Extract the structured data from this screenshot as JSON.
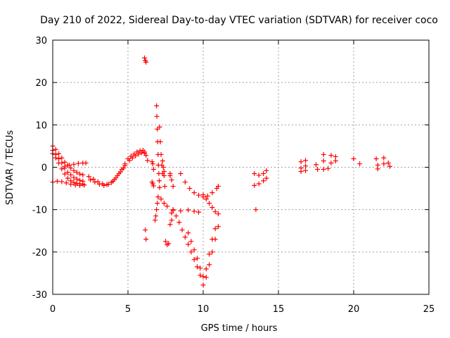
{
  "chart_data": {
    "type": "scatter",
    "title": "Day 210 of 2022, Sidereal Day-to-day VTEC variation (SDTVAR) for receiver coco",
    "xlabel": "GPS time / hours",
    "ylabel": "SDTVAR / TECUs",
    "xlim": [
      0,
      25
    ],
    "ylim": [
      -30,
      30
    ],
    "xticks": [
      "0",
      "5",
      "10",
      "15",
      "20",
      "25"
    ],
    "yticks": [
      "-30",
      "-20",
      "-10",
      "0",
      "10",
      "20",
      "30"
    ],
    "grid": true,
    "marker": "+",
    "color": "#ff0000",
    "series": [
      {
        "name": "SDTVAR",
        "points": [
          [
            0.0,
            5.0
          ],
          [
            0.2,
            4.2
          ],
          [
            0.4,
            3.2
          ],
          [
            0.6,
            2.2
          ],
          [
            0.8,
            1.2
          ],
          [
            1.0,
            0.5
          ],
          [
            1.2,
            -0.2
          ],
          [
            1.4,
            -0.8
          ],
          [
            1.6,
            -1.2
          ],
          [
            1.8,
            -1.6
          ],
          [
            2.0,
            -1.8
          ],
          [
            0.0,
            4.0
          ],
          [
            0.2,
            3.0
          ],
          [
            0.4,
            2.0
          ],
          [
            0.6,
            1.0
          ],
          [
            0.8,
            -0.2
          ],
          [
            1.0,
            -1.2
          ],
          [
            1.2,
            -1.8
          ],
          [
            1.4,
            -2.4
          ],
          [
            1.6,
            -2.8
          ],
          [
            1.8,
            -3.1
          ],
          [
            2.0,
            -3.3
          ],
          [
            0.0,
            3.2
          ],
          [
            0.2,
            2.2
          ],
          [
            0.4,
            1.0
          ],
          [
            0.6,
            -0.4
          ],
          [
            0.8,
            -1.6
          ],
          [
            1.0,
            -2.6
          ],
          [
            1.2,
            -3.2
          ],
          [
            1.4,
            -3.6
          ],
          [
            1.6,
            -3.8
          ],
          [
            1.8,
            -3.9
          ],
          [
            2.0,
            -4.0
          ],
          [
            0.0,
            -3.5
          ],
          [
            0.3,
            -3.3
          ],
          [
            0.6,
            -3.4
          ],
          [
            0.9,
            -3.7
          ],
          [
            1.2,
            -4.0
          ],
          [
            1.5,
            -4.2
          ],
          [
            1.8,
            -4.3
          ],
          [
            2.1,
            -4.2
          ],
          [
            0.8,
            0.2
          ],
          [
            1.1,
            0.5
          ],
          [
            1.4,
            0.7
          ],
          [
            1.7,
            0.9
          ],
          [
            2.0,
            1.0
          ],
          [
            2.2,
            1.0
          ],
          [
            2.4,
            -2.2
          ],
          [
            2.7,
            -2.8
          ],
          [
            3.0,
            -3.4
          ],
          [
            3.3,
            -3.9
          ],
          [
            3.6,
            -4.1
          ],
          [
            3.9,
            -3.6
          ],
          [
            4.1,
            -2.9
          ],
          [
            4.3,
            -2.0
          ],
          [
            4.5,
            -1.1
          ],
          [
            4.7,
            -0.2
          ],
          [
            4.8,
            0.4
          ],
          [
            2.5,
            -3.0
          ],
          [
            2.8,
            -3.5
          ],
          [
            3.1,
            -4.0
          ],
          [
            3.4,
            -4.3
          ],
          [
            3.7,
            -4.0
          ],
          [
            4.0,
            -3.3
          ],
          [
            4.2,
            -2.5
          ],
          [
            4.4,
            -1.5
          ],
          [
            4.6,
            -0.5
          ],
          [
            4.8,
            0.8
          ],
          [
            5.0,
            2.0
          ],
          [
            5.2,
            2.6
          ],
          [
            5.4,
            3.1
          ],
          [
            5.6,
            3.6
          ],
          [
            5.8,
            3.9
          ],
          [
            6.0,
            4.0
          ],
          [
            6.1,
            3.6
          ],
          [
            6.2,
            2.8
          ],
          [
            5.1,
            1.6
          ],
          [
            5.3,
            2.2
          ],
          [
            5.5,
            2.7
          ],
          [
            5.7,
            3.1
          ],
          [
            5.9,
            3.4
          ],
          [
            6.1,
            3.3
          ],
          [
            6.3,
            1.6
          ],
          [
            6.1,
            25.8
          ],
          [
            6.15,
            25.2
          ],
          [
            6.2,
            24.8
          ],
          [
            6.6,
            1.3
          ],
          [
            6.65,
            0.8
          ],
          [
            6.7,
            -0.5
          ],
          [
            6.6,
            -3.5
          ],
          [
            6.65,
            -3.9
          ],
          [
            6.7,
            -4.4
          ],
          [
            6.15,
            -14.8
          ],
          [
            6.2,
            -17.0
          ],
          [
            6.9,
            14.5
          ],
          [
            6.92,
            12.0
          ],
          [
            6.95,
            9.0
          ],
          [
            6.97,
            6.0
          ],
          [
            7.0,
            3.0
          ],
          [
            7.02,
            0.5
          ],
          [
            7.05,
            -1.5
          ],
          [
            7.08,
            -3.2
          ],
          [
            7.1,
            -4.8
          ],
          [
            7.1,
            9.5
          ],
          [
            7.15,
            6.0
          ],
          [
            7.2,
            3.0
          ],
          [
            7.25,
            0.5
          ],
          [
            7.3,
            -1.5
          ],
          [
            7.4,
            -1.0
          ],
          [
            7.3,
            1.5
          ],
          [
            7.35,
            0.0
          ],
          [
            7.4,
            -2.0
          ],
          [
            7.45,
            -4.5
          ],
          [
            7.0,
            -7.0
          ],
          [
            6.95,
            -8.5
          ],
          [
            6.9,
            -10.0
          ],
          [
            6.85,
            -11.5
          ],
          [
            6.8,
            -12.5
          ],
          [
            7.2,
            -7.5
          ],
          [
            7.4,
            -8.5
          ],
          [
            7.6,
            -9.2
          ],
          [
            7.5,
            -17.5
          ],
          [
            7.6,
            -18.3
          ],
          [
            7.7,
            -18.0
          ],
          [
            7.8,
            -2.0
          ],
          [
            7.9,
            -3.0
          ],
          [
            8.0,
            -4.5
          ],
          [
            7.8,
            -1.5
          ],
          [
            7.9,
            -12.5
          ],
          [
            7.8,
            -13.5
          ],
          [
            7.9,
            -10.8
          ],
          [
            8.0,
            -10.0
          ],
          [
            8.0,
            -10.2
          ],
          [
            8.5,
            -10.3
          ],
          [
            9.0,
            -10.1
          ],
          [
            9.4,
            -10.4
          ],
          [
            9.7,
            -10.6
          ],
          [
            8.5,
            -1.5
          ],
          [
            8.8,
            -3.5
          ],
          [
            9.1,
            -5.0
          ],
          [
            9.4,
            -6.0
          ],
          [
            9.7,
            -6.6
          ],
          [
            10.0,
            -7.0
          ],
          [
            10.3,
            -6.8
          ],
          [
            10.6,
            -6.0
          ],
          [
            10.9,
            -5.0
          ],
          [
            11.0,
            -4.5
          ],
          [
            10.0,
            -6.5
          ],
          [
            10.2,
            -7.5
          ],
          [
            10.4,
            -8.5
          ],
          [
            10.6,
            -9.5
          ],
          [
            10.8,
            -10.5
          ],
          [
            11.0,
            -11.0
          ],
          [
            8.2,
            -11.5
          ],
          [
            8.4,
            -13.0
          ],
          [
            8.6,
            -14.8
          ],
          [
            8.8,
            -16.5
          ],
          [
            9.0,
            -18.2
          ],
          [
            9.2,
            -20.0
          ],
          [
            9.4,
            -21.8
          ],
          [
            9.6,
            -23.5
          ],
          [
            9.8,
            -25.5
          ],
          [
            10.0,
            -27.8
          ],
          [
            10.2,
            -26.0
          ],
          [
            10.4,
            -23.0
          ],
          [
            10.6,
            -20.0
          ],
          [
            10.8,
            -17.0
          ],
          [
            11.0,
            -14.0
          ],
          [
            9.0,
            -15.5
          ],
          [
            9.2,
            -17.5
          ],
          [
            9.4,
            -19.5
          ],
          [
            9.6,
            -21.5
          ],
          [
            9.8,
            -23.8
          ],
          [
            10.0,
            -25.8
          ],
          [
            10.2,
            -24.0
          ],
          [
            10.4,
            -20.5
          ],
          [
            10.6,
            -17.0
          ],
          [
            10.8,
            -14.5
          ],
          [
            13.4,
            -1.5
          ],
          [
            13.7,
            -1.9
          ],
          [
            14.0,
            -1.5
          ],
          [
            14.2,
            -0.8
          ],
          [
            13.4,
            -4.3
          ],
          [
            13.7,
            -3.9
          ],
          [
            14.0,
            -3.2
          ],
          [
            14.2,
            -2.6
          ],
          [
            13.5,
            -10.0
          ],
          [
            16.5,
            1.3
          ],
          [
            16.5,
            -0.2
          ],
          [
            16.5,
            -1.0
          ],
          [
            16.8,
            1.6
          ],
          [
            16.8,
            0.3
          ],
          [
            16.8,
            -0.8
          ],
          [
            17.5,
            0.6
          ],
          [
            17.6,
            -0.5
          ],
          [
            18.0,
            3.0
          ],
          [
            18.0,
            1.5
          ],
          [
            18.0,
            -0.5
          ],
          [
            18.5,
            2.8
          ],
          [
            18.5,
            1.0
          ],
          [
            18.8,
            2.5
          ],
          [
            18.8,
            1.5
          ],
          [
            18.3,
            -0.3
          ],
          [
            20.0,
            2.0
          ],
          [
            20.4,
            0.8
          ],
          [
            21.5,
            2.0
          ],
          [
            21.6,
            0.5
          ],
          [
            21.6,
            -0.4
          ],
          [
            22.0,
            2.2
          ],
          [
            22.0,
            0.8
          ],
          [
            22.3,
            1.0
          ],
          [
            22.4,
            0.2
          ]
        ]
      }
    ]
  }
}
